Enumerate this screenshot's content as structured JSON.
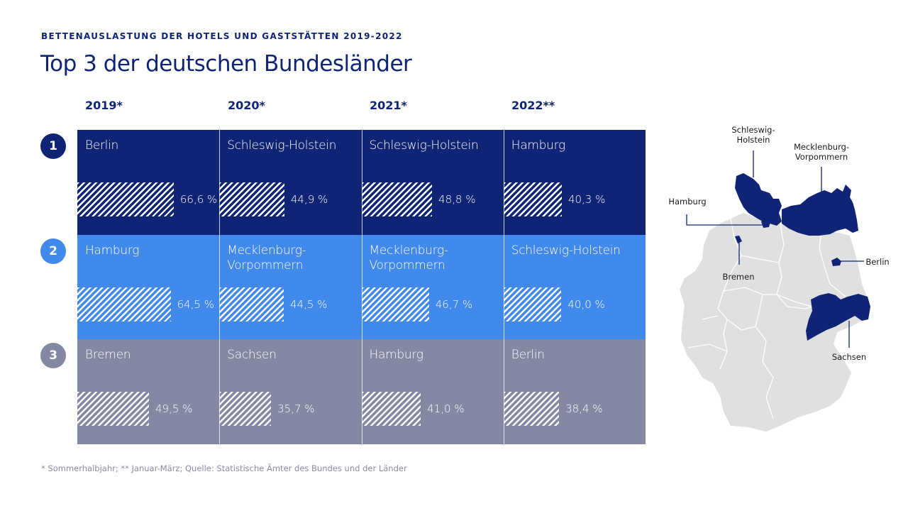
{
  "header": {
    "subtitle": "BETTENAUSLASTUNG DER HOTELS UND GASTSTÄTTEN 2019-2022",
    "title": "Top 3 der deutschen Bundesländer"
  },
  "colors": {
    "rank1": "#0f2474",
    "rank2": "#4189ea",
    "rank3": "#8588a3",
    "map_highlight": "#0f2474",
    "map_base": "#e0e0e0"
  },
  "chart_data": {
    "type": "table",
    "title": "Top 3 der deutschen Bundesländer",
    "subtitle": "BETTENAUSLASTUNG DER HOTELS UND GASTSTÄTTEN 2019-2022",
    "unit": "%",
    "xlim": [
      0,
      100
    ],
    "columns": [
      "2019*",
      "2020*",
      "2021*",
      "2022**"
    ],
    "ranks": [
      "1",
      "2",
      "3"
    ],
    "rows": [
      {
        "rank": "1",
        "cells": [
          {
            "state": "Berlin",
            "value": 66.6,
            "label": "66,6 %"
          },
          {
            "state": "Schleswig-Holstein",
            "value": 44.9,
            "label": "44,9 %"
          },
          {
            "state": "Schleswig-Holstein",
            "value": 48.8,
            "label": "48,8 %"
          },
          {
            "state": "Hamburg",
            "value": 40.3,
            "label": "40,3 %"
          }
        ]
      },
      {
        "rank": "2",
        "cells": [
          {
            "state": "Hamburg",
            "value": 64.5,
            "label": "64,5 %"
          },
          {
            "state": "Mecklenburg-\nVorpommern",
            "value": 44.5,
            "label": "44,5 %"
          },
          {
            "state": "Mecklenburg-\nVorpommern",
            "value": 46.7,
            "label": "46,7 %"
          },
          {
            "state": "Schleswig-Holstein",
            "value": 40.0,
            "label": "40,0 %"
          }
        ]
      },
      {
        "rank": "3",
        "cells": [
          {
            "state": "Bremen",
            "value": 49.5,
            "label": "49,5 %"
          },
          {
            "state": "Sachsen",
            "value": 35.7,
            "label": "35,7 %"
          },
          {
            "state": "Hamburg",
            "value": 41.0,
            "label": "41,0 %"
          },
          {
            "state": "Berlin",
            "value": 38.4,
            "label": "38,4 %"
          }
        ]
      }
    ]
  },
  "map": {
    "labels": {
      "schleswig_holstein": "Schleswig-\nHolstein",
      "mecklenburg_vorpommern": "Mecklenburg-\nVorpommern",
      "hamburg": "Hamburg",
      "bremen": "Bremen",
      "berlin": "Berlin",
      "sachsen": "Sachsen"
    }
  },
  "footnote": "* Sommerhalbjahr;  ** Januar-März;  Quelle: Statistische  Ämter  des Bundes und der Länder"
}
